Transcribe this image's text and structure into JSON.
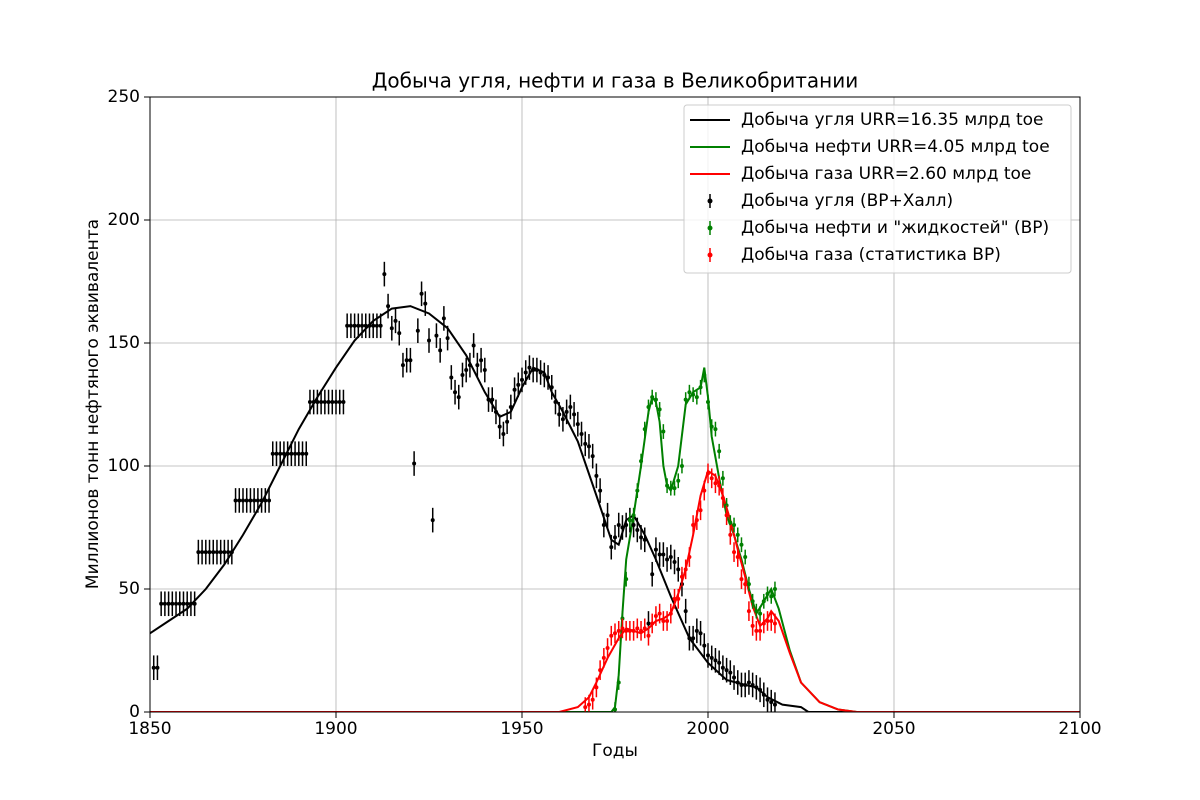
{
  "chart_data": {
    "type": "line",
    "title": "Добыча угля, нефти и газа в Великобритании",
    "xlabel": "Годы",
    "ylabel": "Миллионов тонн нефтяного эквивалента",
    "xlim": [
      1850,
      2100
    ],
    "xticks": [
      1850,
      1900,
      1950,
      2000,
      2050,
      2100
    ],
    "ylim": [
      0,
      250
    ],
    "yticks": [
      0,
      50,
      100,
      150,
      200,
      250
    ],
    "grid": true,
    "legend": "upper right",
    "series": [
      {
        "name": "Добыча угля URR=16.35 млрд toe",
        "kind": "line",
        "color": "#000000",
        "x": [
          1850,
          1855,
          1860,
          1865,
          1870,
          1875,
          1880,
          1885,
          1890,
          1895,
          1900,
          1905,
          1910,
          1915,
          1920,
          1925,
          1930,
          1935,
          1940,
          1944,
          1947,
          1950,
          1953,
          1956,
          1958,
          1961,
          1965,
          1970,
          1974,
          1976,
          1978,
          1980,
          1983,
          1986,
          1990,
          1995,
          2000,
          2005,
          2010,
          2013,
          2016,
          2020,
          2025,
          2027,
          2100
        ],
        "values": [
          32,
          37,
          42,
          50,
          60,
          72,
          85,
          100,
          115,
          128,
          140,
          151,
          159,
          164,
          165,
          162,
          156,
          145,
          130,
          120,
          122,
          132,
          140,
          138,
          130,
          122,
          110,
          88,
          70,
          68,
          78,
          80,
          72,
          62,
          47,
          30,
          20,
          13,
          11,
          10,
          6,
          3,
          2,
          0,
          0
        ]
      },
      {
        "name": "Добыча нефти URR=4.05 млрд toe",
        "kind": "line",
        "color": "#008000",
        "x": [
          1850,
          1974,
          1975,
          1976,
          1977,
          1978,
          1980,
          1982,
          1984,
          1985,
          1986,
          1987,
          1988,
          1989,
          1990,
          1992,
          1994,
          1996,
          1998,
          1999,
          2000,
          2001,
          2003,
          2005,
          2007,
          2009,
          2011,
          2013,
          2015,
          2017,
          2019,
          2022,
          2025,
          2030,
          2035,
          2040,
          2100
        ],
        "values": [
          0,
          0,
          2,
          15,
          40,
          62,
          80,
          100,
          122,
          128,
          126,
          118,
          100,
          92,
          90,
          100,
          125,
          130,
          132,
          140,
          128,
          112,
          95,
          80,
          72,
          62,
          50,
          40,
          45,
          50,
          42,
          25,
          12,
          4,
          1,
          0,
          0
        ]
      },
      {
        "name": "Добыча газа URR=2.60 млрд toe",
        "kind": "line",
        "color": "#ff0000",
        "x": [
          1850,
          1960,
          1965,
          1968,
          1970,
          1973,
          1976,
          1978,
          1980,
          1982,
          1984,
          1986,
          1988,
          1990,
          1992,
          1994,
          1996,
          1998,
          2000,
          2002,
          2004,
          2006,
          2008,
          2010,
          2012,
          2014,
          2016,
          2017,
          2019,
          2022,
          2025,
          2030,
          2035,
          2040,
          2100
        ],
        "values": [
          0,
          0,
          2,
          6,
          12,
          22,
          30,
          34,
          33,
          32,
          34,
          37,
          38,
          40,
          48,
          58,
          72,
          88,
          98,
          96,
          88,
          78,
          66,
          55,
          43,
          35,
          38,
          41,
          37,
          24,
          12,
          4,
          1,
          0,
          0
        ]
      },
      {
        "name": "Добыча угля (BP+Халл)",
        "kind": "errorbar",
        "color": "#000000",
        "error": 5,
        "x": [
          1851,
          1852,
          1853,
          1854,
          1855,
          1856,
          1857,
          1858,
          1859,
          1860,
          1861,
          1862,
          1863,
          1864,
          1865,
          1866,
          1867,
          1868,
          1869,
          1870,
          1871,
          1872,
          1873,
          1874,
          1875,
          1876,
          1877,
          1878,
          1879,
          1880,
          1881,
          1882,
          1883,
          1884,
          1885,
          1886,
          1887,
          1888,
          1889,
          1890,
          1891,
          1892,
          1893,
          1894,
          1895,
          1896,
          1897,
          1898,
          1899,
          1900,
          1901,
          1902,
          1903,
          1904,
          1905,
          1906,
          1907,
          1908,
          1909,
          1910,
          1911,
          1912,
          1913,
          1914,
          1915,
          1916,
          1917,
          1918,
          1919,
          1920,
          1921,
          1922,
          1923,
          1924,
          1925,
          1926,
          1927,
          1928,
          1929,
          1930,
          1931,
          1932,
          1933,
          1934,
          1935,
          1936,
          1937,
          1938,
          1939,
          1940,
          1941,
          1942,
          1943,
          1944,
          1945,
          1946,
          1947,
          1948,
          1949,
          1950,
          1951,
          1952,
          1953,
          1954,
          1955,
          1956,
          1957,
          1958,
          1959,
          1960,
          1961,
          1962,
          1963,
          1964,
          1965,
          1966,
          1967,
          1968,
          1969,
          1970,
          1971,
          1972,
          1973,
          1974,
          1975,
          1976,
          1977,
          1978,
          1979,
          1980,
          1981,
          1982,
          1983,
          1984,
          1985,
          1986,
          1987,
          1988,
          1989,
          1990,
          1991,
          1992,
          1993,
          1994,
          1995,
          1996,
          1997,
          1998,
          1999,
          2000,
          2001,
          2002,
          2003,
          2004,
          2005,
          2006,
          2007,
          2008,
          2009,
          2010,
          2011,
          2012,
          2013,
          2014,
          2015,
          2016,
          2017,
          2018
        ],
        "values": [
          18,
          18,
          44,
          44,
          44,
          44,
          44,
          44,
          44,
          44,
          44,
          44,
          65,
          65,
          65,
          65,
          65,
          65,
          65,
          65,
          65,
          65,
          86,
          86,
          86,
          86,
          86,
          86,
          86,
          86,
          86,
          86,
          105,
          105,
          105,
          105,
          105,
          105,
          105,
          105,
          105,
          105,
          126,
          126,
          126,
          126,
          126,
          126,
          126,
          126,
          126,
          126,
          157,
          157,
          157,
          157,
          157,
          157,
          157,
          157,
          157,
          157,
          178,
          165,
          156,
          159,
          154,
          141,
          143,
          143,
          101,
          155,
          170,
          166,
          151,
          78,
          153,
          147,
          160,
          152,
          136,
          130,
          128,
          137,
          139,
          141,
          149,
          141,
          143,
          139,
          127,
          127,
          122,
          116,
          113,
          118,
          124,
          131,
          133,
          135,
          138,
          140,
          139,
          139,
          138,
          137,
          136,
          132,
          126,
          121,
          119,
          122,
          124,
          121,
          117,
          113,
          109,
          108,
          104,
          96,
          90,
          76,
          80,
          67,
          71,
          76,
          75,
          76,
          78,
          76,
          74,
          71,
          70,
          36,
          56,
          66,
          64,
          64,
          62,
          63,
          61,
          58,
          52,
          41,
          30,
          30,
          33,
          32,
          27,
          23,
          22,
          21,
          20,
          18,
          17,
          16,
          14,
          12,
          11,
          11,
          12,
          11,
          10,
          9,
          7,
          5,
          4,
          3
        ]
      },
      {
        "name": "Добыча нефти и \"жидкостей\" (BP)",
        "kind": "errorbar",
        "color": "#008000",
        "error": 3,
        "x": [
          1975,
          1976,
          1977,
          1978,
          1979,
          1980,
          1981,
          1982,
          1983,
          1984,
          1985,
          1986,
          1987,
          1988,
          1989,
          1990,
          1991,
          1992,
          1993,
          1994,
          1995,
          1996,
          1997,
          1998,
          1999,
          2000,
          2001,
          2002,
          2003,
          2004,
          2005,
          2006,
          2007,
          2008,
          2009,
          2010,
          2011,
          2012,
          2013,
          2014,
          2015,
          2016,
          2017,
          2018
        ],
        "values": [
          1,
          12,
          38,
          54,
          78,
          80,
          90,
          102,
          115,
          124,
          128,
          127,
          123,
          114,
          92,
          91,
          91,
          94,
          100,
          127,
          130,
          129,
          128,
          132,
          137,
          126,
          116,
          115,
          106,
          95,
          84,
          77,
          76,
          72,
          68,
          63,
          52,
          45,
          41,
          40,
          45,
          48,
          47,
          50
        ]
      },
      {
        "name": "Добыча газа (статистика BP)",
        "kind": "errorbar",
        "color": "#ff0000",
        "error": 4,
        "x": [
          1967,
          1968,
          1969,
          1970,
          1971,
          1972,
          1973,
          1974,
          1975,
          1976,
          1977,
          1978,
          1979,
          1980,
          1981,
          1982,
          1983,
          1984,
          1985,
          1986,
          1987,
          1988,
          1989,
          1990,
          1991,
          1992,
          1993,
          1994,
          1995,
          1996,
          1997,
          1998,
          1999,
          2000,
          2001,
          2002,
          2003,
          2004,
          2005,
          2006,
          2007,
          2008,
          2009,
          2010,
          2011,
          2012,
          2013,
          2014,
          2015,
          2016,
          2017,
          2018
        ],
        "values": [
          2,
          3,
          5,
          10,
          17,
          22,
          26,
          31,
          32,
          33,
          34,
          33,
          33,
          33,
          34,
          33,
          34,
          31,
          36,
          39,
          40,
          37,
          37,
          40,
          46,
          46,
          55,
          58,
          63,
          76,
          78,
          82,
          90,
          97,
          95,
          93,
          92,
          87,
          80,
          72,
          65,
          63,
          54,
          52,
          41,
          35,
          33,
          33,
          36,
          37,
          37,
          36
        ]
      }
    ]
  }
}
